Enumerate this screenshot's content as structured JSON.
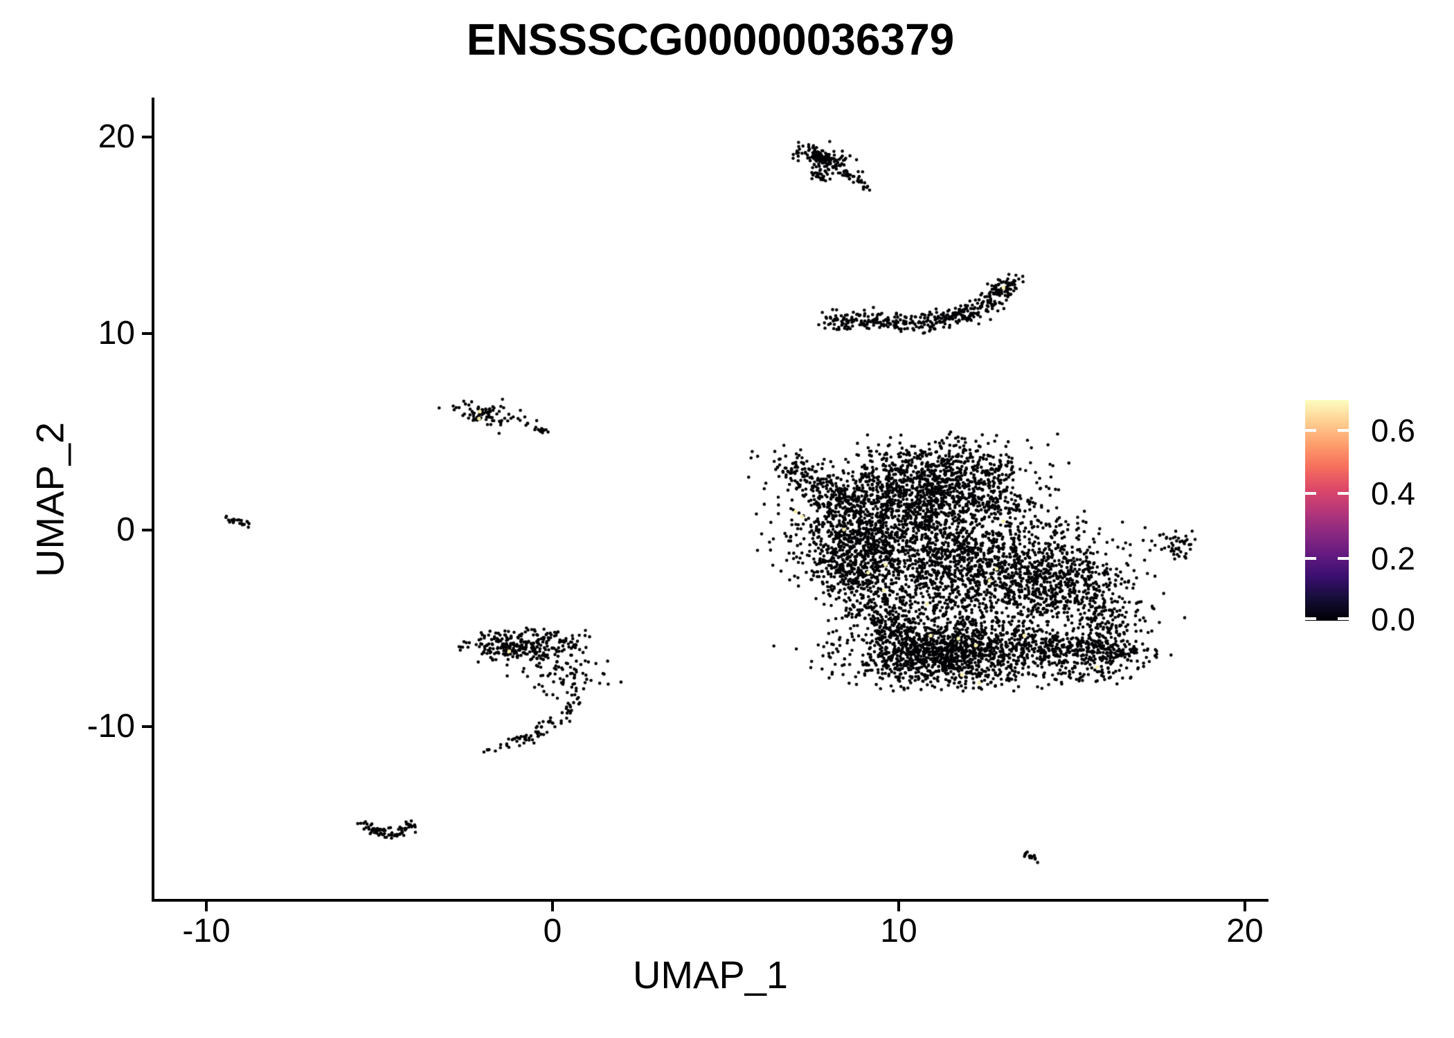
{
  "title": "ENSSSCG00000036379",
  "chart_data": {
    "type": "scatter",
    "title": "ENSSSCG00000036379",
    "xlabel": "UMAP_1",
    "ylabel": "UMAP_2",
    "xlim": [
      -11.5,
      20.6
    ],
    "ylim": [
      -18.9,
      21.9
    ],
    "x_ticks": [
      -10,
      0,
      10,
      20
    ],
    "y_ticks": [
      -10,
      0,
      10,
      20
    ],
    "x_tick_labels": [
      "-10",
      "0",
      "10",
      "20"
    ],
    "y_tick_labels": [
      "20",
      "10",
      "0",
      "-10"
    ],
    "grid": false,
    "legend_position": "right",
    "point_radius_px": 2.3,
    "colors": {
      "point_low": "#000004",
      "point_high": "#F7F0AB",
      "axis": "#000000",
      "background": "#ffffff"
    },
    "colorbar": {
      "orientation": "vertical",
      "tick_labels": [
        "0.6",
        "0.4",
        "0.2",
        "0.0"
      ],
      "tick_values": [
        0.6,
        0.4,
        0.2,
        0.0
      ],
      "value_range": [
        0.0,
        0.7
      ],
      "palette": "magma",
      "stops_bottom_to_top": [
        "#000004",
        "#140e36",
        "#3b0f70",
        "#641a80",
        "#8c2981",
        "#b73779",
        "#de4968",
        "#f7705c",
        "#fe9f6d",
        "#fece91",
        "#fcfdbf"
      ]
    },
    "clusters": [
      {
        "name": "top-small-blob",
        "type": "gauss",
        "cx": 7.85,
        "cy": 18.85,
        "sx": 0.42,
        "sy": 0.25,
        "rot": -33,
        "n": 150
      },
      {
        "name": "top-small-tail",
        "type": "strip",
        "pts": [
          [
            8.3,
            18.25
          ],
          [
            9.05,
            17.4
          ]
        ],
        "jx": 0.1,
        "jy": 0.08,
        "n": 30
      },
      {
        "name": "top-small-sub",
        "type": "gauss",
        "cx": 7.75,
        "cy": 17.95,
        "sx": 0.18,
        "sy": 0.12,
        "rot": 0,
        "n": 25
      },
      {
        "name": "crescent",
        "type": "strip",
        "pts": [
          [
            8.0,
            10.65
          ],
          [
            9.3,
            10.6
          ],
          [
            10.7,
            10.5
          ],
          [
            11.9,
            10.95
          ],
          [
            12.7,
            11.7
          ],
          [
            13.2,
            12.6
          ]
        ],
        "jx": 0.22,
        "jy": 0.25,
        "n": 400
      },
      {
        "name": "crescent-tip",
        "type": "gauss",
        "cx": 13.25,
        "cy": 12.65,
        "sx": 0.12,
        "sy": 0.12,
        "rot": 0,
        "n": 8
      },
      {
        "name": "left-small",
        "type": "gauss",
        "cx": -1.95,
        "cy": 5.85,
        "sx": 0.45,
        "sy": 0.26,
        "rot": -15,
        "n": 80
      },
      {
        "name": "left-small-dot",
        "type": "gauss",
        "cx": -0.72,
        "cy": 5.35,
        "sx": 0.05,
        "sy": 0.05,
        "rot": 0,
        "n": 3
      },
      {
        "name": "left-small-dash",
        "type": "strip",
        "pts": [
          [
            -0.55,
            5.12
          ],
          [
            -0.15,
            4.95
          ]
        ],
        "jx": 0.06,
        "jy": 0.05,
        "n": 12
      },
      {
        "name": "far-left-tiny",
        "type": "gauss",
        "cx": -9.1,
        "cy": 0.45,
        "sx": 0.22,
        "sy": 0.12,
        "rot": -25,
        "n": 22
      },
      {
        "name": "mid-left-band",
        "type": "gauss",
        "cx": -0.85,
        "cy": -5.9,
        "sx": 0.92,
        "sy": 0.4,
        "rot": 0,
        "n": 290,
        "clip": [
          -2.7,
          1.1,
          -6.9,
          -5.0
        ]
      },
      {
        "name": "mid-left-scatter",
        "type": "gauss",
        "cx": 0.25,
        "cy": -7.4,
        "sx": 0.6,
        "sy": 0.6,
        "rot": 0,
        "n": 80
      },
      {
        "name": "mid-left-tail",
        "type": "strip",
        "pts": [
          [
            0.8,
            -8.3
          ],
          [
            0.35,
            -9.4
          ],
          [
            -0.5,
            -10.4
          ],
          [
            -1.4,
            -11.05
          ],
          [
            -1.9,
            -11.35
          ]
        ],
        "jx": 0.14,
        "jy": 0.12,
        "n": 75
      },
      {
        "name": "bottom-left-wing-l",
        "type": "strip",
        "pts": [
          [
            -5.35,
            -14.95
          ],
          [
            -4.75,
            -15.6
          ]
        ],
        "jx": 0.16,
        "jy": 0.12,
        "n": 45
      },
      {
        "name": "bottom-left-wing-r",
        "type": "strip",
        "pts": [
          [
            -4.05,
            -15.0
          ],
          [
            -4.6,
            -15.65
          ]
        ],
        "jx": 0.14,
        "jy": 0.12,
        "n": 35
      },
      {
        "name": "bottom-right-tiny",
        "type": "strip",
        "pts": [
          [
            13.55,
            -16.45
          ],
          [
            14.1,
            -16.85
          ]
        ],
        "jx": 0.08,
        "jy": 0.07,
        "n": 15
      },
      {
        "name": "right-small",
        "type": "gauss",
        "cx": 18.0,
        "cy": -0.6,
        "sx": 0.26,
        "sy": 0.22,
        "rot": 0,
        "n": 30
      },
      {
        "name": "right-small-stem",
        "type": "strip",
        "pts": [
          [
            18.0,
            -0.95
          ],
          [
            18.15,
            -1.55
          ]
        ],
        "jx": 0.09,
        "jy": 0.1,
        "n": 12
      },
      {
        "name": "right-small-dot",
        "type": "gauss",
        "cx": 17.55,
        "cy": -0.3,
        "sx": 0.06,
        "sy": 0.05,
        "rot": 0,
        "n": 3
      },
      {
        "name": "main-upper",
        "type": "gauss",
        "cx": 10.7,
        "cy": 1.9,
        "sx": 1.5,
        "sy": 1.1,
        "rot": 0,
        "n": 1150,
        "clip": [
          5.7,
          17.3,
          -8.3,
          4.9
        ]
      },
      {
        "name": "main-top-bump",
        "type": "gauss",
        "cx": 11.6,
        "cy": 3.5,
        "sx": 0.95,
        "sy": 0.55,
        "rot": 0,
        "n": 170,
        "clip": [
          5.7,
          17.3,
          -8.3,
          4.9
        ]
      },
      {
        "name": "main-upper-left-arm",
        "type": "strip",
        "pts": [
          [
            6.5,
            3.5
          ],
          [
            7.5,
            2.4
          ],
          [
            8.5,
            1.3
          ]
        ],
        "jx": 0.4,
        "jy": 0.35,
        "n": 160
      },
      {
        "name": "main-left",
        "type": "gauss",
        "cx": 8.8,
        "cy": -0.6,
        "sx": 0.85,
        "sy": 1.2,
        "rot": 0,
        "n": 600
      },
      {
        "name": "main-left-flank",
        "type": "strip",
        "pts": [
          [
            8.3,
            -1.6
          ],
          [
            9.4,
            -4.0
          ],
          [
            10.4,
            -6.1
          ]
        ],
        "jx": 0.55,
        "jy": 0.5,
        "n": 330
      },
      {
        "name": "main-central",
        "type": "gauss",
        "cx": 11.6,
        "cy": -1.7,
        "sx": 1.6,
        "sy": 1.6,
        "rot": 0,
        "n": 1350,
        "clip": [
          5.7,
          17.3,
          -8.3,
          4.9
        ]
      },
      {
        "name": "main-right",
        "type": "gauss",
        "cx": 14.5,
        "cy": -2.7,
        "sx": 1.05,
        "sy": 1.3,
        "rot": 0,
        "n": 650
      },
      {
        "name": "main-bottom",
        "type": "gauss",
        "cx": 11.4,
        "cy": -6.3,
        "sx": 1.4,
        "sy": 0.85,
        "rot": 0,
        "n": 1300,
        "clip": [
          5.7,
          17.3,
          -8.3,
          4.9
        ]
      },
      {
        "name": "main-bottom-right-wing",
        "type": "strip",
        "pts": [
          [
            13.6,
            -5.7
          ],
          [
            15.2,
            -6.1
          ],
          [
            16.75,
            -6.35
          ]
        ],
        "jx": 0.45,
        "jy": 0.4,
        "n": 340
      },
      {
        "name": "main-right-spur",
        "type": "gauss",
        "cx": 16.0,
        "cy": -4.5,
        "sx": 0.6,
        "sy": 0.8,
        "rot": 0,
        "n": 150
      },
      {
        "name": "main-below-wing",
        "type": "gauss",
        "cx": 15.2,
        "cy": -7.2,
        "sx": 0.8,
        "sy": 0.4,
        "rot": 0,
        "n": 70
      },
      {
        "name": "main-halo",
        "type": "gauss",
        "cx": 9.6,
        "cy": 0.6,
        "sx": 2.0,
        "sy": 1.7,
        "rot": 0,
        "n": 140,
        "clip": [
          5.7,
          17.3,
          -8.3,
          4.9
        ]
      },
      {
        "name": "main-top-stray",
        "type": "gauss",
        "cx": 11.7,
        "cy": 4.6,
        "sx": 0.3,
        "sy": 0.25,
        "rot": 0,
        "n": 6
      }
    ],
    "highlight_points": [
      [
        13.0,
        12.3
      ],
      [
        -2.1,
        6.0
      ],
      [
        -2.12,
        5.64
      ],
      [
        -1.25,
        -6.2
      ],
      [
        7.0,
        0.9
      ],
      [
        7.2,
        0.66
      ],
      [
        8.4,
        0.0
      ],
      [
        9.1,
        -2.2
      ],
      [
        9.6,
        -1.8
      ],
      [
        9.55,
        -3.1
      ],
      [
        13.0,
        0.42
      ],
      [
        12.8,
        -2.0
      ],
      [
        12.6,
        -2.6
      ],
      [
        10.8,
        -3.8
      ],
      [
        10.9,
        -5.4
      ],
      [
        13.6,
        -5.4
      ],
      [
        11.7,
        -5.55
      ],
      [
        12.2,
        -5.9
      ],
      [
        11.8,
        -7.4
      ],
      [
        12.3,
        -7.8
      ],
      [
        15.7,
        -7.0
      ]
    ]
  }
}
